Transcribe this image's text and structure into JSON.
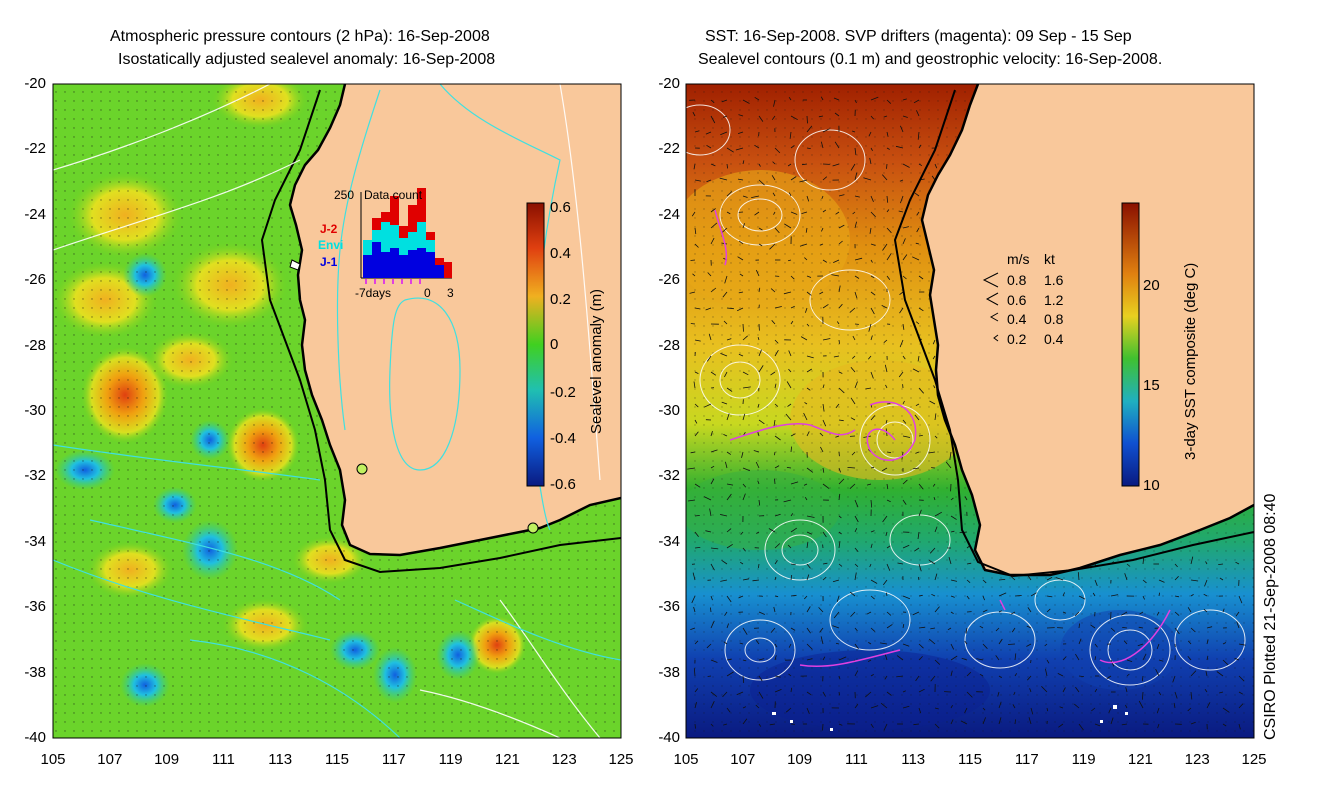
{
  "left_panel": {
    "title_line1": "Atmospheric pressure contours (2 hPa): 16-Sep-2008",
    "title_line2": "Isostatically adjusted sealevel anomaly: 16-Sep-2008",
    "colorbar_label": "Sealevel anomaly (m)",
    "colorbar_ticks": [
      "0.6",
      "0.4",
      "0.2",
      "0",
      "-0.2",
      "-0.4",
      "-0.6"
    ],
    "inset": {
      "count_label": "250",
      "title": "Data count",
      "missions": [
        "J-2",
        "Envi",
        "J-1"
      ],
      "mission_colors": [
        "#e00000",
        "#00e0e0",
        "#0000e0"
      ],
      "axis_labels": [
        "-7days",
        "0",
        "3"
      ]
    }
  },
  "right_panel": {
    "title_line1": "SST: 16-Sep-2008. SVP drifters (magenta): 09 Sep - 15 Sep",
    "title_line2": "Sealevel contours (0.1 m) and geostrophic velocity: 16-Sep-2008.",
    "colorbar_label": "3-day SST composite (deg C)",
    "colorbar_ticks": [
      "20",
      "15",
      "10"
    ],
    "scale_header": [
      "m/s",
      "kt"
    ],
    "scale_rows": [
      {
        "ms": "0.8",
        "kt": "1.6"
      },
      {
        "ms": "0.6",
        "kt": "1.2"
      },
      {
        "ms": "0.4",
        "kt": "0.8"
      },
      {
        "ms": "0.2",
        "kt": "0.4"
      }
    ]
  },
  "axes": {
    "y_ticks": [
      "-20",
      "-22",
      "-24",
      "-26",
      "-28",
      "-30",
      "-32",
      "-34",
      "-36",
      "-38",
      "-40"
    ],
    "x_ticks": [
      "105",
      "107",
      "109",
      "111",
      "113",
      "115",
      "117",
      "119",
      "121",
      "123",
      "125"
    ]
  },
  "credit": "CSIRO Plotted 21-Sep-2008 08:40",
  "colors": {
    "land": "#f9c89b",
    "coast": "#000000",
    "drifter": "#e040e0"
  }
}
